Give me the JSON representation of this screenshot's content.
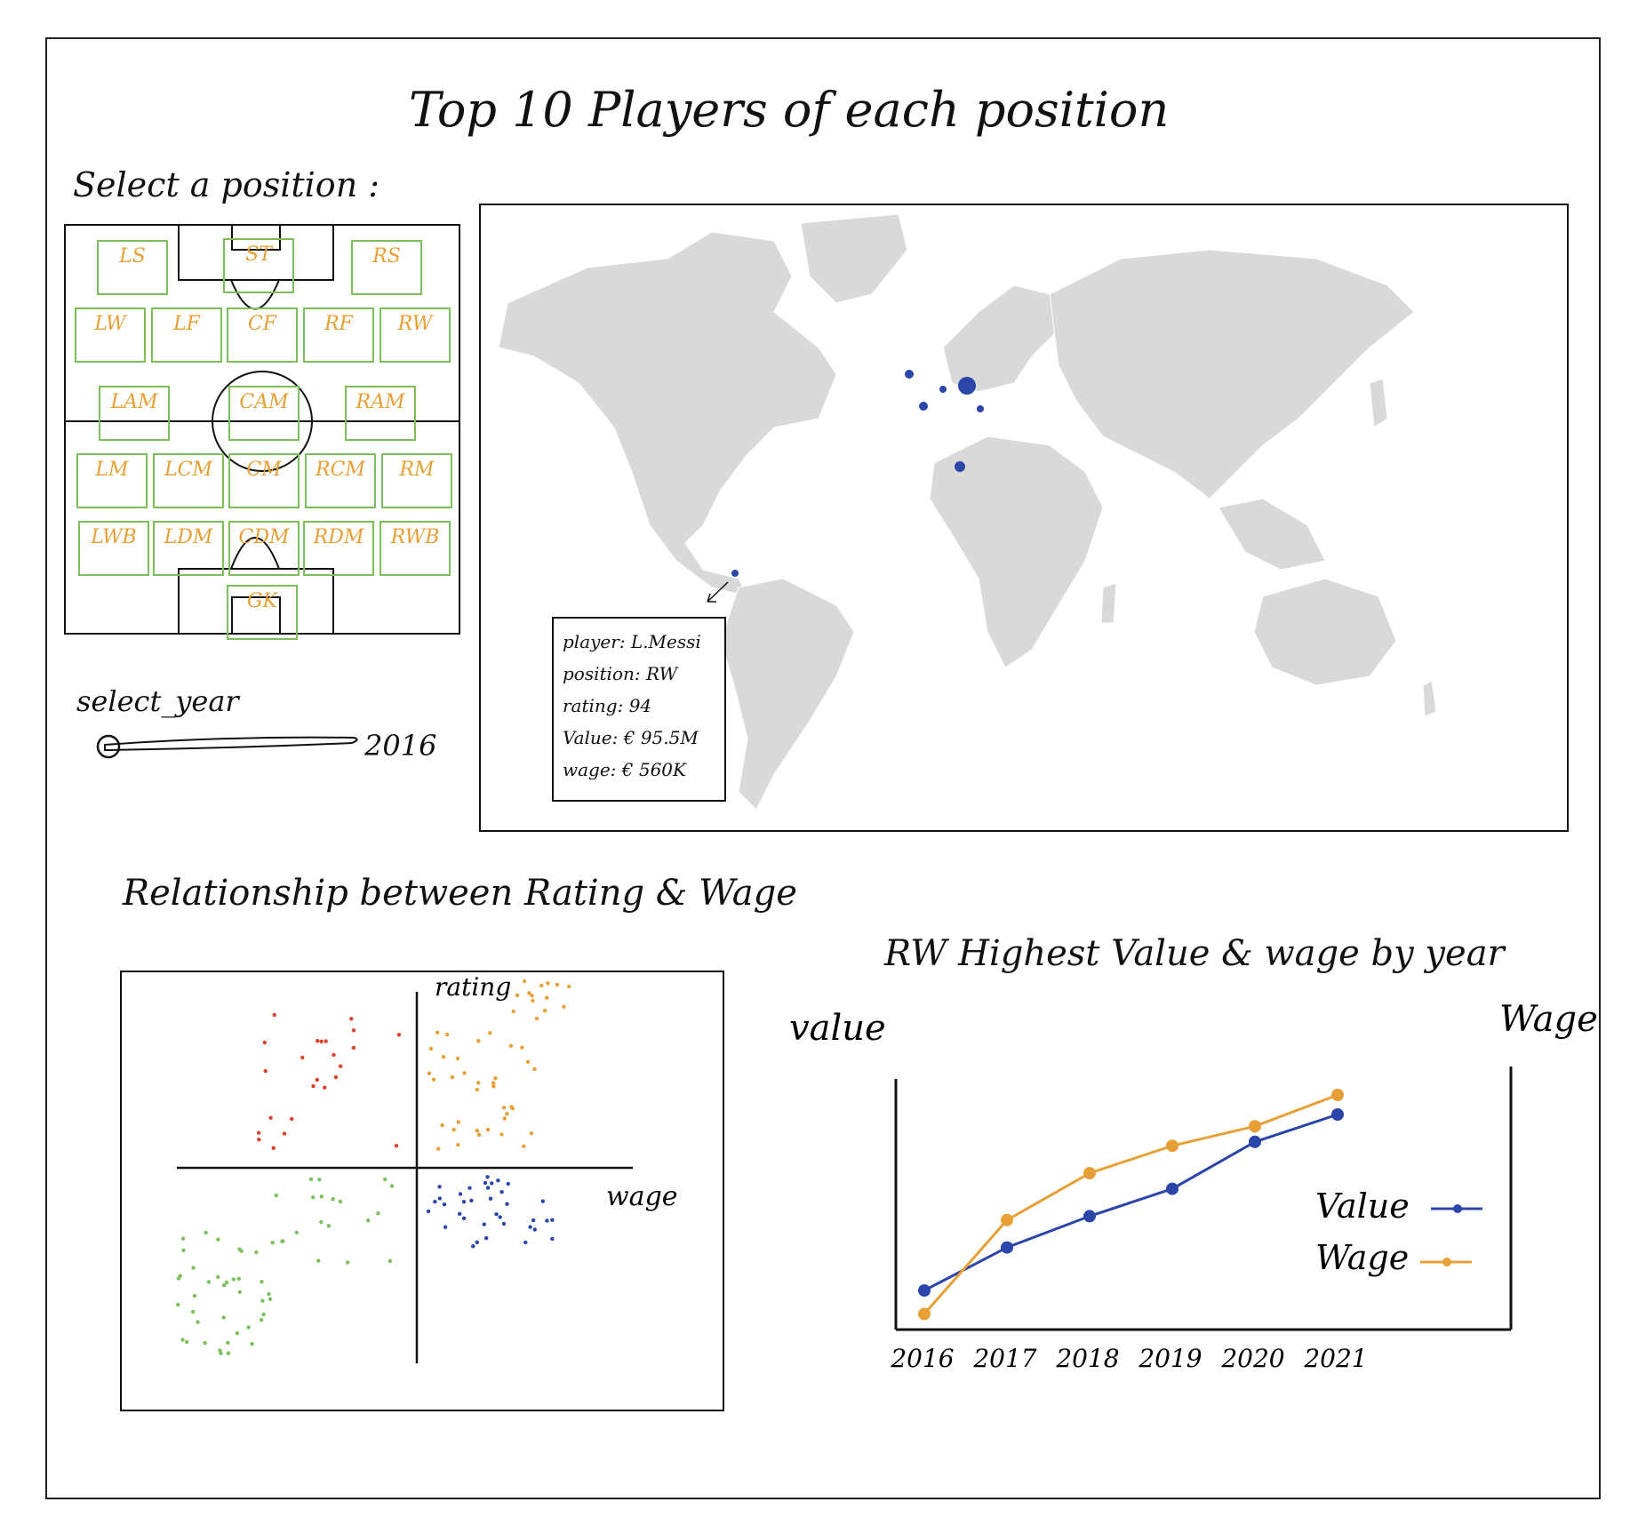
{
  "title": "Top 10 Players of each position",
  "position_selector": {
    "label": "Select a position :",
    "positions": [
      "LS",
      "ST",
      "RS",
      "LW",
      "LF",
      "CF",
      "RF",
      "RW",
      "LAM",
      "CAM",
      "RAM",
      "LM",
      "LCM",
      "CM",
      "RCM",
      "RM",
      "LWB",
      "LDM",
      "CDM",
      "RDM",
      "RWB",
      "GK"
    ]
  },
  "year_selector": {
    "label": "select_year",
    "value": "2016"
  },
  "map": {
    "tooltip": {
      "player": "player: L.Messi",
      "position": "position: RW",
      "rating": "rating: 94",
      "value": "Value: € 95.5M",
      "wage": "wage: € 560K"
    },
    "land_color": "#d9d9d9",
    "marker_color": "#2b45a8"
  },
  "scatter": {
    "title": "Relationship between Rating & Wage",
    "y_axis_label": "rating",
    "x_axis_label": "wage",
    "quadrant_colors": {
      "top_left": "#d9412b",
      "top_right": "#e6a035",
      "bottom_left": "#7dbf5c",
      "bottom_right": "#2b45a8"
    }
  },
  "chart_data": {
    "type": "line",
    "title": "RW Highest Value & wage by year",
    "x": [
      "2016",
      "2017",
      "2018",
      "2019",
      "2020",
      "2021"
    ],
    "x_tick_labels": [
      "2016",
      "2017",
      "2018",
      "2019",
      "2020",
      "2021"
    ],
    "ylabel_left": "value",
    "ylabel_right": "Wage",
    "series": [
      {
        "name": "Value",
        "color": "#2b45a8",
        "values": [
          1.0,
          2.1,
          2.9,
          3.6,
          4.8,
          5.5
        ]
      },
      {
        "name": "Wage",
        "color": "#e6a035",
        "values": [
          0.4,
          2.8,
          4.0,
          4.7,
          5.2,
          6.0
        ]
      }
    ],
    "ylim": [
      0,
      6.5
    ],
    "legend_position": "bottom-right",
    "grid": false
  }
}
